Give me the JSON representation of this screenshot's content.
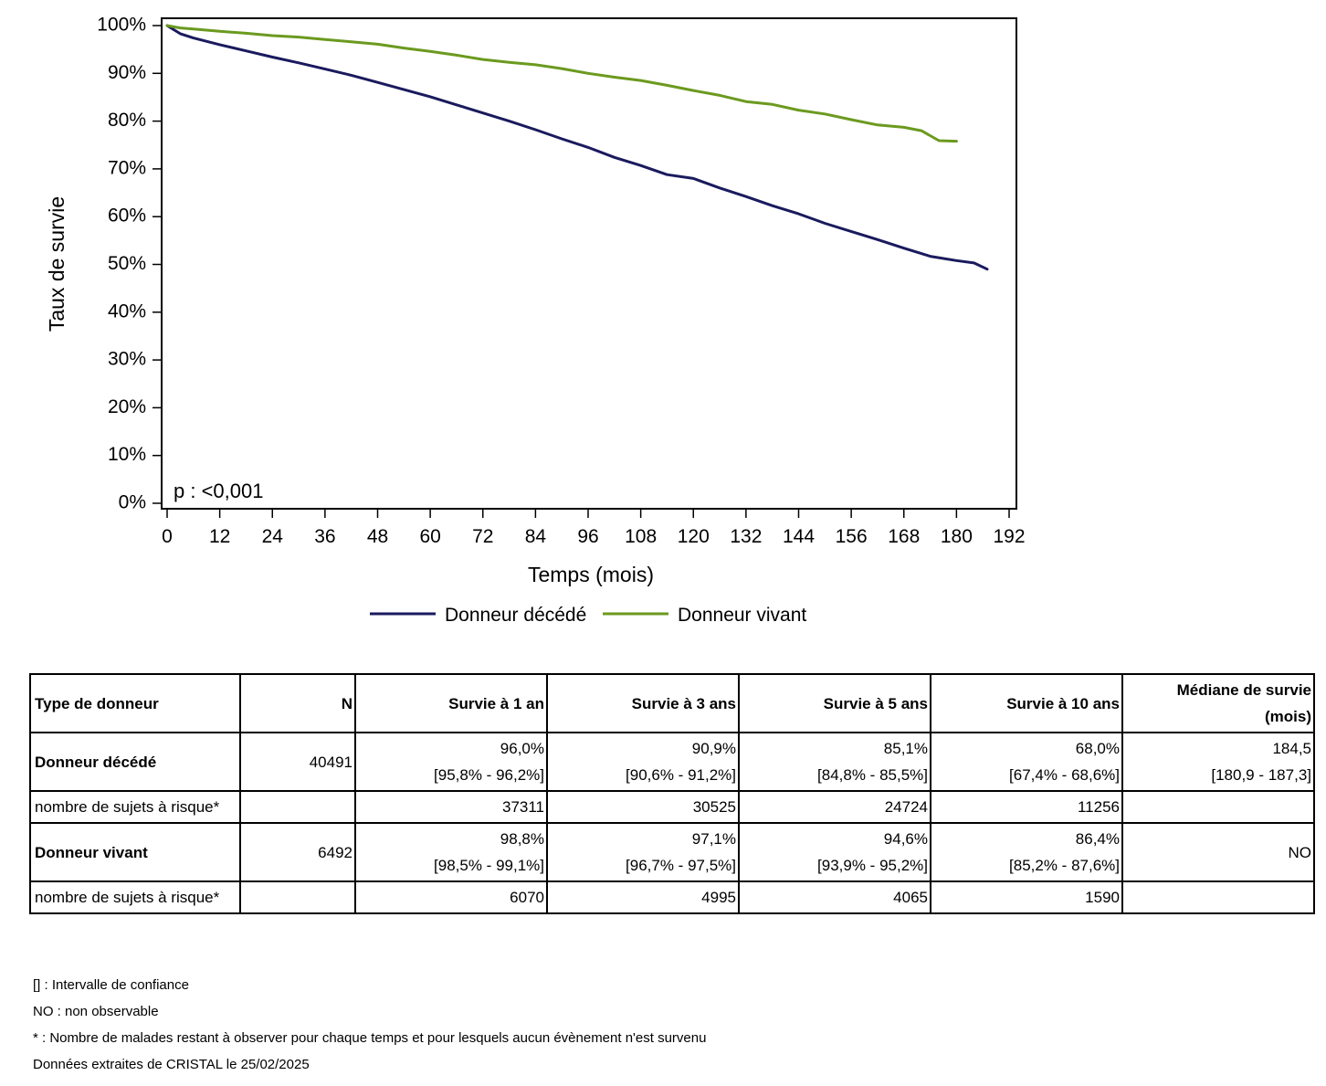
{
  "chart_data": {
    "type": "line",
    "title": "",
    "xlabel": "Temps (mois)",
    "ylabel": "Taux de survie",
    "xlim": [
      0,
      192
    ],
    "ylim": [
      0,
      100
    ],
    "x_ticks": [
      "0",
      "12",
      "24",
      "36",
      "48",
      "60",
      "72",
      "84",
      "96",
      "108",
      "120",
      "132",
      "144",
      "156",
      "168",
      "180",
      "192"
    ],
    "y_ticks": [
      "0%",
      "10%",
      "20%",
      "30%",
      "40%",
      "50%",
      "60%",
      "70%",
      "80%",
      "90%",
      "100%"
    ],
    "annotation": "p : <0,001",
    "legend_position": "bottom",
    "series": [
      {
        "name": "Donneur décédé",
        "color": "#1a1a5e",
        "x": [
          0,
          3,
          6,
          12,
          18,
          24,
          30,
          36,
          42,
          48,
          54,
          60,
          66,
          72,
          78,
          84,
          90,
          96,
          102,
          108,
          114,
          120,
          126,
          132,
          138,
          144,
          150,
          156,
          162,
          168,
          174,
          180,
          184,
          187
        ],
        "y": [
          100,
          98.3,
          97.4,
          96.0,
          94.7,
          93.4,
          92.2,
          90.9,
          89.6,
          88.1,
          86.6,
          85.1,
          83.4,
          81.7,
          80.0,
          78.2,
          76.3,
          74.5,
          72.4,
          70.7,
          68.8,
          68.0,
          66.0,
          64.2,
          62.3,
          60.6,
          58.6,
          56.9,
          55.2,
          53.4,
          51.7,
          50.8,
          50.3,
          49.0
        ]
      },
      {
        "name": "Donneur vivant",
        "color": "#6b9a1f",
        "x": [
          0,
          3,
          6,
          12,
          18,
          24,
          30,
          36,
          42,
          48,
          54,
          60,
          66,
          72,
          78,
          84,
          90,
          96,
          102,
          108,
          114,
          120,
          126,
          132,
          138,
          144,
          150,
          156,
          162,
          168,
          172,
          176,
          180
        ],
        "y": [
          100,
          99.5,
          99.3,
          98.8,
          98.4,
          97.9,
          97.6,
          97.1,
          96.6,
          96.1,
          95.3,
          94.6,
          93.8,
          92.9,
          92.3,
          91.8,
          91.0,
          90.0,
          89.2,
          88.5,
          87.5,
          86.4,
          85.4,
          84.1,
          83.5,
          82.3,
          81.5,
          80.3,
          79.2,
          78.7,
          78.0,
          75.9,
          75.8
        ]
      }
    ]
  },
  "table": {
    "headers": [
      "Type de donneur",
      "N",
      "Survie à 1 an",
      "Survie à 3 ans",
      "Survie à 5 ans",
      "Survie à 10 ans",
      "Médiane de survie (mois)"
    ],
    "groups": [
      {
        "label": "Donneur décédé",
        "n": "40491",
        "values": [
          [
            "96,0%",
            "[95,8% - 96,2%]"
          ],
          [
            "90,9%",
            "[90,6% - 91,2%]"
          ],
          [
            "85,1%",
            "[84,8% - 85,5%]"
          ],
          [
            "68,0%",
            "[67,4% - 68,6%]"
          ],
          [
            "184,5",
            "[180,9 - 187,3]"
          ]
        ],
        "risk_label": "nombre de sujets à risque*",
        "risk": [
          "37311",
          "30525",
          "24724",
          "11256",
          ""
        ]
      },
      {
        "label": "Donneur vivant",
        "n": "6492",
        "values": [
          [
            "98,8%",
            "[98,5% - 99,1%]"
          ],
          [
            "97,1%",
            "[96,7% - 97,5%]"
          ],
          [
            "94,6%",
            "[93,9% - 95,2%]"
          ],
          [
            "86,4%",
            "[85,2% - 87,6%]"
          ],
          [
            "NO",
            ""
          ]
        ],
        "risk_label": "nombre de sujets à risque*",
        "risk": [
          "6070",
          "4995",
          "4065",
          "1590",
          ""
        ]
      }
    ]
  },
  "footnotes": [
    "[] : Intervalle de confiance",
    "NO : non observable",
    "* : Nombre de malades restant à observer pour chaque temps et pour lesquels aucun évènement n'est survenu",
    "Données extraites de CRISTAL le 25/02/2025"
  ]
}
